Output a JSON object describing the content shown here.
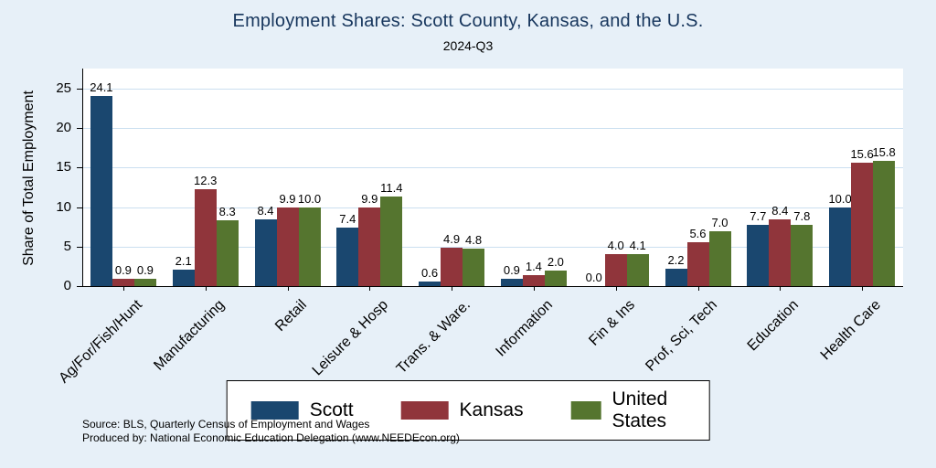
{
  "title": "Employment Shares: Scott County, Kansas, and the U.S.",
  "subtitle": "2024-Q3",
  "source_line1": "Source: BLS, Quarterly Census of Employment and Wages",
  "source_line2": "Produced by: National Economic Education Delegation (www.NEEDEcon.org)",
  "colors": {
    "background": "#e7f0f8",
    "plot_bg": "#ffffff",
    "grid": "#cbdff0",
    "title": "#17365d",
    "axis": "#000000"
  },
  "chart_data": {
    "type": "bar",
    "title": "Employment Shares: Scott County, Kansas, and the U.S.",
    "subtitle": "2024-Q3",
    "xlabel": "",
    "ylabel": "Share of Total Employment",
    "ylim": [
      0,
      27
    ],
    "yticks": [
      0,
      5,
      10,
      15,
      20,
      25
    ],
    "grid": true,
    "legend_position": "bottom",
    "value_labels": true,
    "categories": [
      "Ag/For/Fish/Hunt",
      "Manufacturing",
      "Retail",
      "Leisure & Hosp",
      "Trans. & Ware.",
      "Information",
      "Fin & Ins",
      "Prof, Sci, Tech",
      "Education",
      "Health Care"
    ],
    "series": [
      {
        "name": "Scott",
        "color": "#1a476f",
        "values": [
          24.1,
          2.1,
          8.4,
          7.4,
          0.6,
          0.9,
          0.0,
          2.2,
          7.7,
          10.0
        ]
      },
      {
        "name": "Kansas",
        "color": "#90353b",
        "values": [
          0.9,
          12.3,
          9.9,
          9.9,
          4.9,
          1.4,
          4.0,
          5.6,
          8.4,
          15.6
        ]
      },
      {
        "name": "United States",
        "color": "#55752f",
        "values": [
          0.9,
          8.3,
          10.0,
          11.4,
          4.8,
          2.0,
          4.1,
          7.0,
          7.8,
          15.8
        ]
      }
    ]
  },
  "legend": {
    "items": [
      {
        "label": "Scott",
        "color": "#1a476f"
      },
      {
        "label": "Kansas",
        "color": "#90353b"
      },
      {
        "label": "United States",
        "color": "#55752f"
      }
    ]
  }
}
